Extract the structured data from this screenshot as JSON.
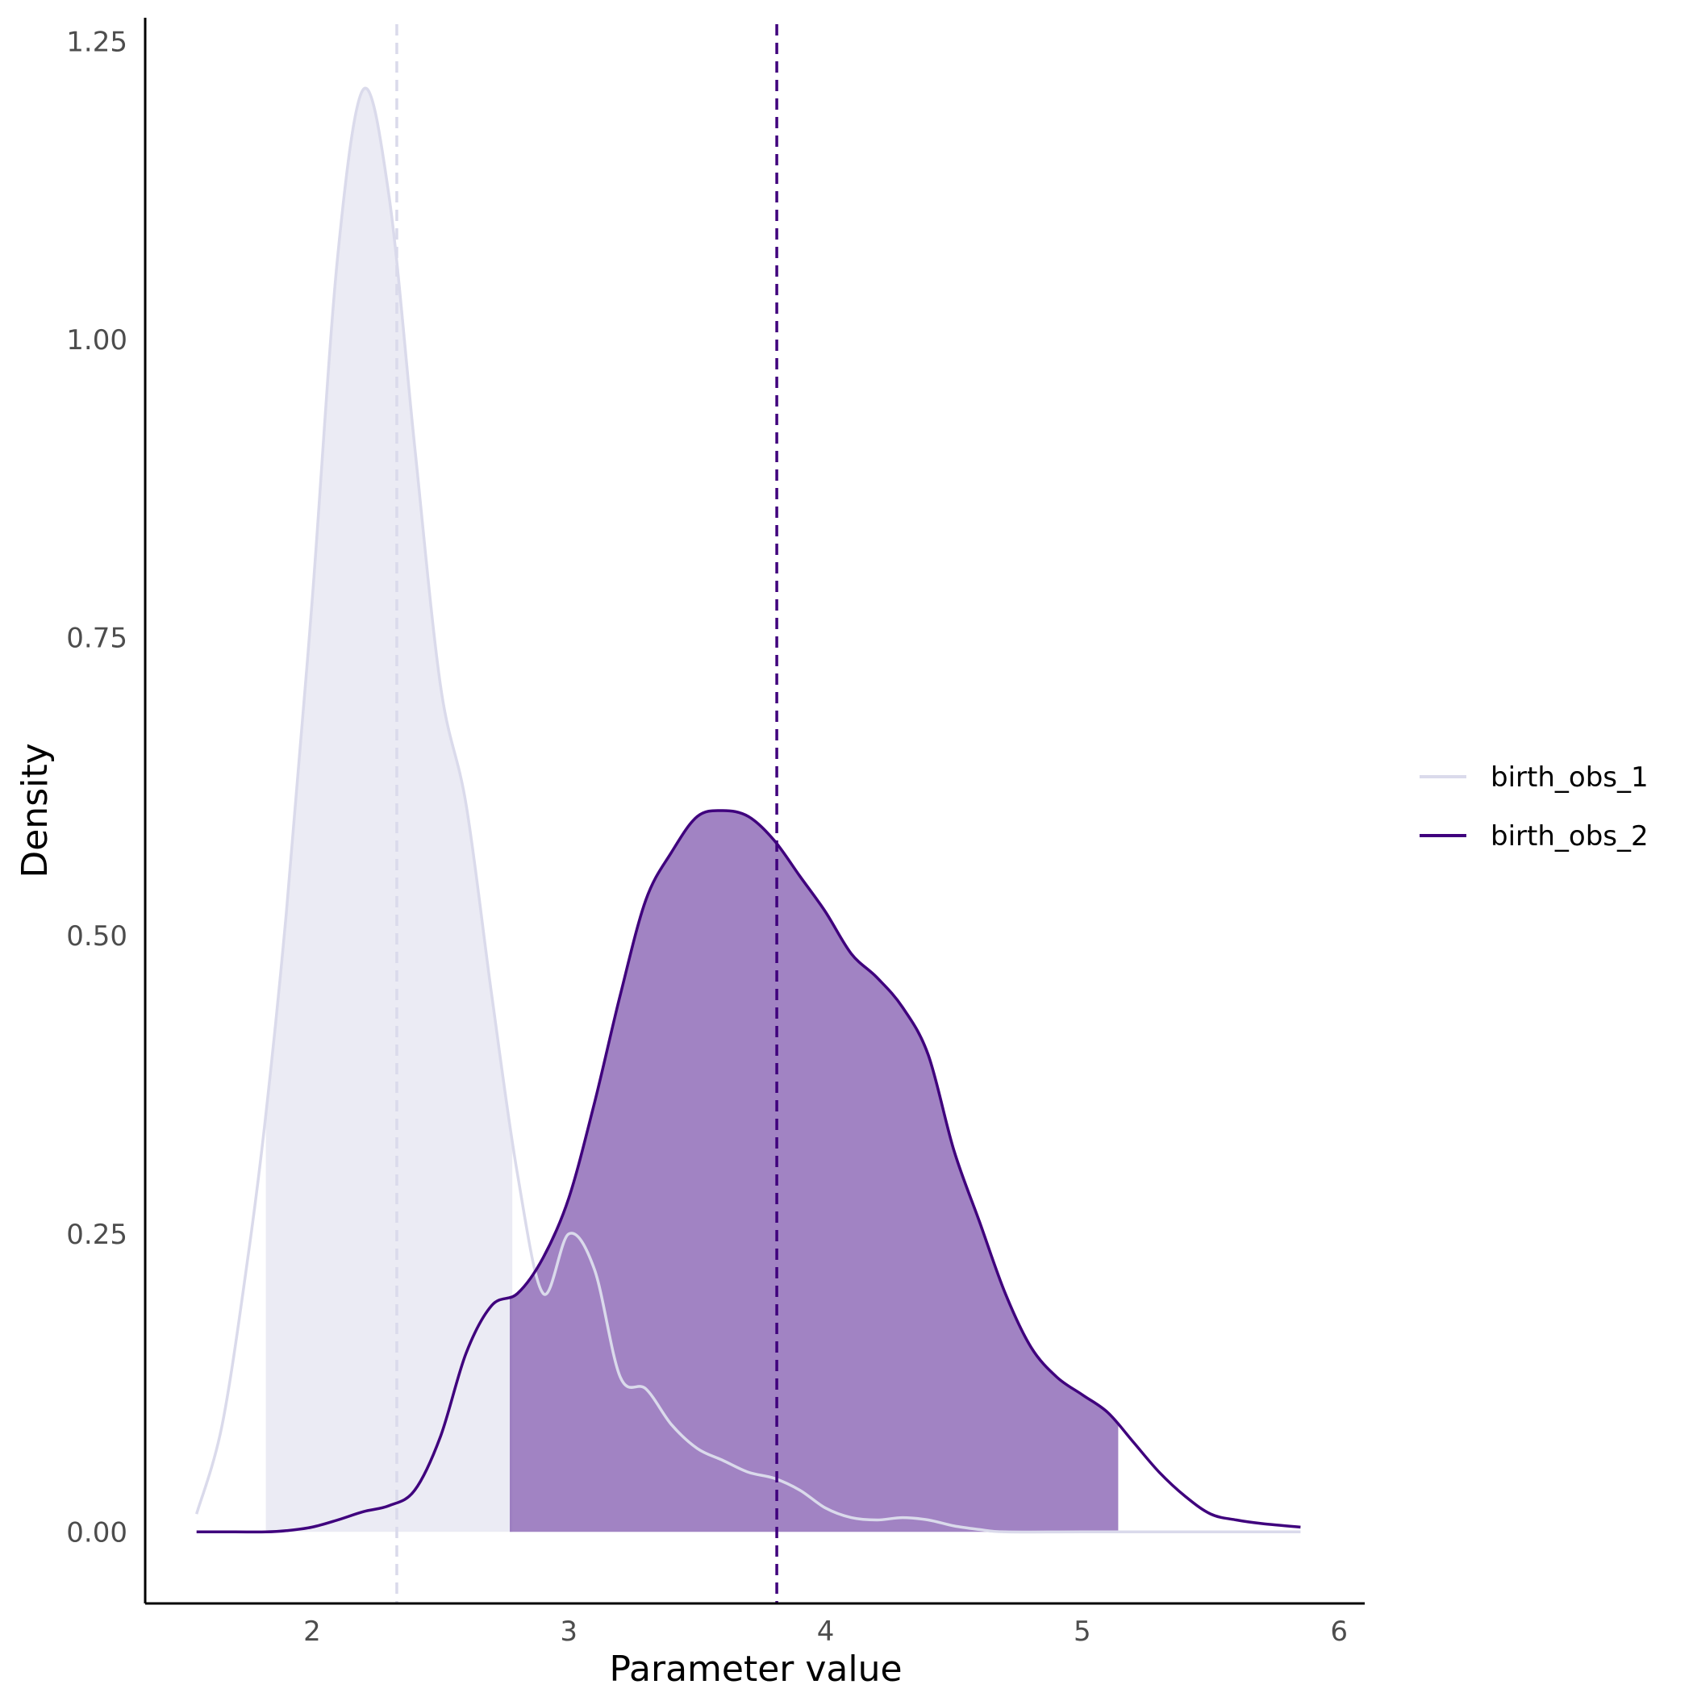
{
  "chart_data": {
    "type": "area",
    "title": "",
    "xlabel": "Parameter value",
    "ylabel": "Density",
    "xlim": [
      1.35,
      6.1
    ],
    "ylim": [
      -0.06,
      1.27
    ],
    "x_ticks": [
      2,
      3,
      4,
      5,
      6
    ],
    "x_tick_labels": [
      "2",
      "3",
      "4",
      "5",
      "6"
    ],
    "y_ticks": [
      0,
      0.25,
      0.5,
      0.75,
      1.0,
      1.25
    ],
    "y_tick_labels": [
      "0.00",
      "0.25",
      "0.50",
      "0.75",
      "1.00",
      "1.25"
    ],
    "grid": false,
    "legend": {
      "position": "right"
    },
    "series": [
      {
        "name": "birth_obs_1",
        "color": "#dadaeb",
        "fill_color": "#dadaeb",
        "fill_opacity": 0.55,
        "mean": 2.33,
        "interval": [
          1.82,
          2.78
        ],
        "x": [
          1.55,
          1.65,
          1.75,
          1.82,
          1.9,
          2.0,
          2.1,
          2.2,
          2.3,
          2.4,
          2.5,
          2.6,
          2.7,
          2.8,
          2.9,
          3.0,
          3.1,
          3.2,
          3.3,
          3.4,
          3.5,
          3.6,
          3.7,
          3.8,
          3.9,
          4.0,
          4.1,
          4.2,
          4.3,
          4.4,
          4.5,
          4.6,
          4.7,
          5.0,
          5.5,
          5.85
        ],
        "y": [
          0.015,
          0.09,
          0.23,
          0.35,
          0.52,
          0.78,
          1.07,
          1.21,
          1.12,
          0.91,
          0.71,
          0.61,
          0.45,
          0.3,
          0.2,
          0.25,
          0.22,
          0.13,
          0.12,
          0.09,
          0.07,
          0.06,
          0.05,
          0.045,
          0.035,
          0.02,
          0.012,
          0.01,
          0.012,
          0.01,
          0.005,
          0.002,
          0.0,
          0.0,
          0.0,
          0.0
        ]
      },
      {
        "name": "birth_obs_2",
        "color": "#3f007d",
        "fill_color": "#8760b2",
        "fill_opacity": 0.78,
        "mean": 3.81,
        "interval": [
          2.77,
          5.14
        ],
        "x": [
          1.55,
          1.7,
          1.82,
          1.9,
          2.0,
          2.1,
          2.2,
          2.3,
          2.4,
          2.5,
          2.6,
          2.7,
          2.8,
          2.9,
          3.0,
          3.1,
          3.2,
          3.3,
          3.4,
          3.5,
          3.6,
          3.7,
          3.8,
          3.9,
          4.0,
          4.1,
          4.2,
          4.3,
          4.4,
          4.5,
          4.6,
          4.7,
          4.8,
          4.9,
          5.0,
          5.1,
          5.2,
          5.3,
          5.4,
          5.5,
          5.6,
          5.7,
          5.85
        ],
        "y": [
          0.0,
          0.0,
          0.0,
          0.001,
          0.004,
          0.01,
          0.017,
          0.022,
          0.035,
          0.08,
          0.15,
          0.19,
          0.2,
          0.23,
          0.28,
          0.36,
          0.45,
          0.53,
          0.57,
          0.6,
          0.605,
          0.6,
          0.58,
          0.55,
          0.52,
          0.485,
          0.465,
          0.44,
          0.4,
          0.32,
          0.26,
          0.2,
          0.155,
          0.13,
          0.115,
          0.1,
          0.075,
          0.05,
          0.03,
          0.015,
          0.01,
          0.007,
          0.004
        ]
      }
    ]
  }
}
